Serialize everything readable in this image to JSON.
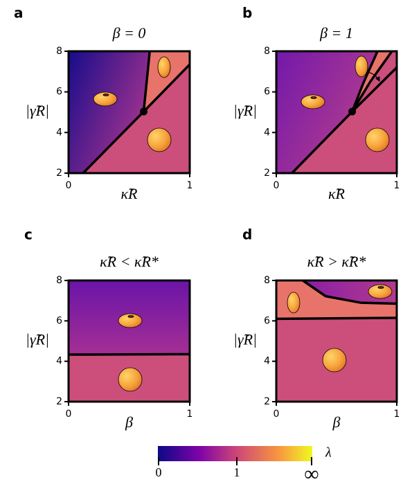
{
  "chart_data": [
    {
      "type": "phase",
      "label": "a",
      "title": "β = 0",
      "xlabel": "κ̃R",
      "ylabel": "|γ̃R|",
      "xlim": [
        0,
        1
      ],
      "ylim": [
        2,
        8
      ],
      "xticks": [
        0,
        1
      ],
      "yticks": [
        2,
        4,
        6,
        8
      ],
      "lines": [
        {
          "x": [
            0.12,
            0.62,
            1
          ],
          "y": [
            2,
            5.03,
            7.35
          ]
        },
        {
          "x": [
            0.62,
            0.67
          ],
          "y": [
            5.03,
            8
          ]
        }
      ],
      "point": {
        "x": 0.62,
        "y": 5.03
      }
    },
    {
      "type": "phase",
      "label": "b",
      "title": "β = 1",
      "xlabel": "κ̃R",
      "ylabel": "|γ̃R|",
      "xlim": [
        0,
        1
      ],
      "ylim": [
        2,
        8
      ],
      "xticks": [
        0,
        1
      ],
      "yticks": [
        2,
        4,
        6,
        8
      ],
      "lines": [
        {
          "x": [
            0.13,
            0.63,
            1
          ],
          "y": [
            2,
            5.03,
            7.2
          ]
        },
        {
          "x": [
            0.63,
            0.72,
            0.84
          ],
          "y": [
            5.03,
            6.4,
            8
          ]
        },
        {
          "x": [
            0.63,
            0.78,
            0.96
          ],
          "y": [
            5.03,
            6.5,
            8
          ]
        }
      ],
      "point": {
        "x": 0.63,
        "y": 5.03
      }
    },
    {
      "type": "phase",
      "label": "c",
      "title": "κ̃R < κ̃R*",
      "xlabel": "β",
      "ylabel": "|γ̃R|",
      "xlim": [
        0,
        1
      ],
      "ylim": [
        2,
        8
      ],
      "xticks": [
        0,
        1
      ],
      "yticks": [
        2,
        4,
        6,
        8
      ],
      "lines": [
        {
          "x": [
            0,
            1
          ],
          "y": [
            4.33,
            4.35
          ]
        }
      ]
    },
    {
      "type": "phase",
      "label": "d",
      "title": "κ̃R > κ̃R*",
      "xlabel": "β",
      "ylabel": "|γ̃R|",
      "xlim": [
        0,
        1
      ],
      "ylim": [
        2,
        8
      ],
      "xticks": [
        0,
        1
      ],
      "yticks": [
        2,
        4,
        6,
        8
      ],
      "lines": [
        {
          "x": [
            0,
            1
          ],
          "y": [
            6.1,
            6.15
          ]
        },
        {
          "x": [
            0.22,
            0.41,
            0.7,
            1
          ],
          "y": [
            8,
            7.22,
            6.9,
            6.85
          ]
        }
      ]
    },
    {
      "type": "colorbar",
      "label": "λ",
      "ticks": [
        "0",
        "1",
        "∞"
      ]
    }
  ]
}
